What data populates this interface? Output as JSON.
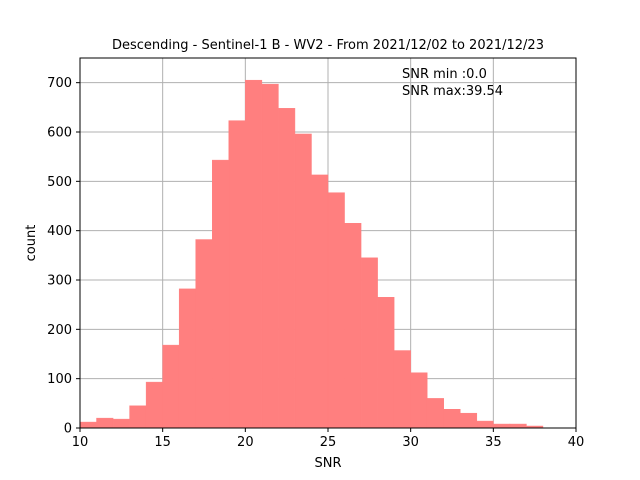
{
  "chart_data": {
    "type": "bar",
    "title": "Descending - Sentinel-1 B - WV2 - From 2021/12/02 to 2021/12/23",
    "xlabel": "SNR",
    "ylabel": "count",
    "xlim": [
      10,
      40
    ],
    "ylim": [
      0,
      750
    ],
    "xticks": [
      "10",
      "15",
      "20",
      "25",
      "30",
      "35",
      "40"
    ],
    "yticks": [
      "0",
      "100",
      "200",
      "300",
      "400",
      "500",
      "600",
      "700"
    ],
    "grid": true,
    "color": "#ff7f7f",
    "bin_edges": [
      10,
      11,
      12,
      13,
      14,
      15,
      16,
      17,
      18,
      19,
      20,
      21,
      22,
      23,
      24,
      25,
      26,
      27,
      28,
      29,
      30,
      31,
      32,
      33,
      34,
      35,
      36,
      37,
      38
    ],
    "values": [
      12,
      20,
      18,
      45,
      93,
      168,
      282,
      382,
      543,
      623,
      705,
      697,
      648,
      596,
      513,
      477,
      415,
      345,
      265,
      157,
      112,
      60,
      38,
      30,
      14,
      8,
      8,
      4
    ],
    "annotations": [
      "SNR min :0.0",
      "SNR max:39.54"
    ]
  }
}
